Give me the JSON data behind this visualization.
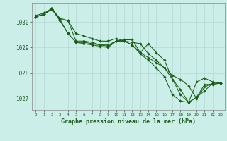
{
  "title": "Graphe pression niveau de la mer (hPa)",
  "bg_color": "#cceee8",
  "grid_color": "#aadddd",
  "line_color": "#1a5c1a",
  "marker_color": "#1a5c1a",
  "xlim": [
    -0.5,
    23.5
  ],
  "ylim": [
    1026.55,
    1030.75
  ],
  "yticks": [
    1027,
    1028,
    1029,
    1030
  ],
  "xticks": [
    0,
    1,
    2,
    3,
    4,
    5,
    6,
    7,
    8,
    9,
    10,
    11,
    12,
    13,
    14,
    15,
    16,
    17,
    18,
    19,
    20,
    21,
    22,
    23
  ],
  "series": [
    [
      1030.25,
      1030.35,
      1030.5,
      1030.15,
      1030.05,
      1029.55,
      1029.45,
      1029.35,
      1029.25,
      1029.25,
      1029.35,
      1029.25,
      1029.2,
      1029.15,
      1028.75,
      1028.5,
      1028.2,
      1027.9,
      1027.75,
      1027.5,
      1027.0,
      1027.45,
      1027.6,
      1027.6
    ],
    [
      1030.2,
      1030.3,
      1030.55,
      1030.1,
      1029.55,
      1029.2,
      1029.15,
      1029.1,
      1029.05,
      1029.0,
      1029.25,
      1029.25,
      1029.1,
      1028.8,
      1029.15,
      1028.8,
      1028.5,
      1027.75,
      1027.35,
      1026.85,
      1027.05,
      1027.3,
      1027.6,
      1027.6
    ],
    [
      1030.2,
      1030.3,
      1030.5,
      1030.1,
      1030.05,
      1029.25,
      1029.25,
      1029.2,
      1029.1,
      1029.1,
      1029.25,
      1029.3,
      1029.3,
      1028.8,
      1028.6,
      1028.4,
      1028.2,
      1027.75,
      1027.15,
      1026.85,
      1027.65,
      1027.8,
      1027.65,
      1027.6
    ],
    [
      1030.2,
      1030.3,
      1030.5,
      1030.05,
      1029.55,
      1029.2,
      1029.2,
      1029.15,
      1029.1,
      1029.05,
      1029.25,
      1029.25,
      1029.1,
      1028.75,
      1028.5,
      1028.2,
      1027.85,
      1027.15,
      1026.9,
      1026.85,
      1027.05,
      1027.55,
      1027.55,
      1027.6
    ]
  ]
}
